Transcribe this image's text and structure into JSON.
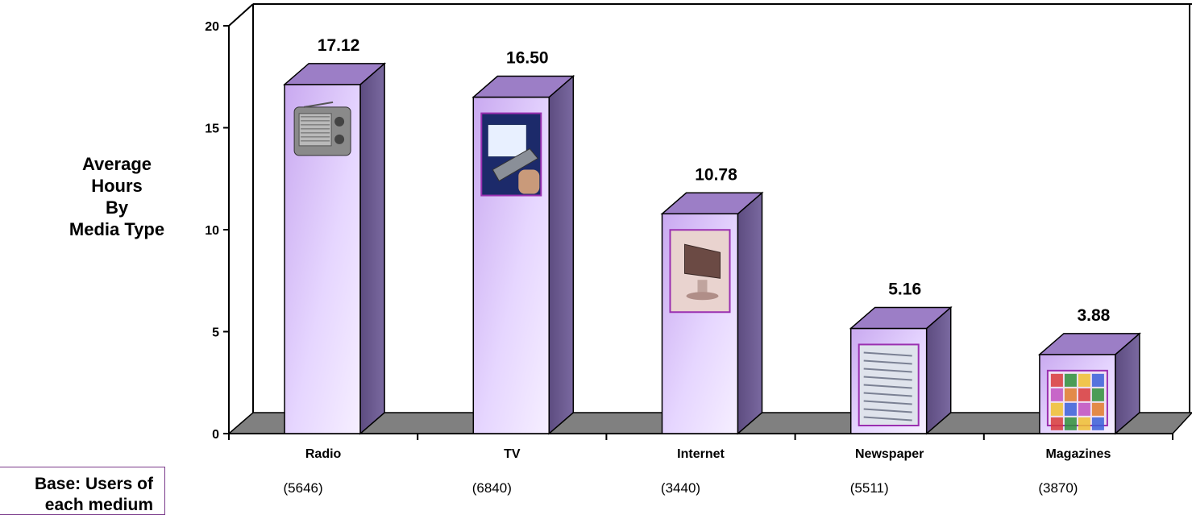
{
  "side_title": [
    "Average",
    "Hours",
    "By",
    "Media Type"
  ],
  "base_note": [
    "Base: Users of",
    "each medium"
  ],
  "chart_data": {
    "type": "bar",
    "categories": [
      "Radio",
      "TV",
      "Internet",
      "Newspaper",
      "Magazines"
    ],
    "values": [
      17.12,
      16.5,
      10.78,
      5.16,
      3.88
    ],
    "data_labels": [
      "17.12",
      "16.50",
      "10.78",
      "5.16",
      "3.88"
    ],
    "base_counts": [
      "(5646)",
      "(6840)",
      "(3440)",
      "(5511)",
      "(3870)"
    ],
    "icons": [
      "radio-icon",
      "tv-remote-icon",
      "computer-monitor-icon",
      "newspaper-icon",
      "magazines-icon"
    ],
    "yticks": [
      "0",
      "5",
      "10",
      "15",
      "20"
    ],
    "ylim": [
      0,
      20
    ],
    "grid": false,
    "colors": {
      "bar_front": "#e8d8ff",
      "bar_front_dark": "#c9a9f0",
      "bar_side": "#6b5a8c",
      "bar_top": "#9c7ec6",
      "floor": "#808080",
      "icon_border": "#9a2fb0"
    }
  }
}
